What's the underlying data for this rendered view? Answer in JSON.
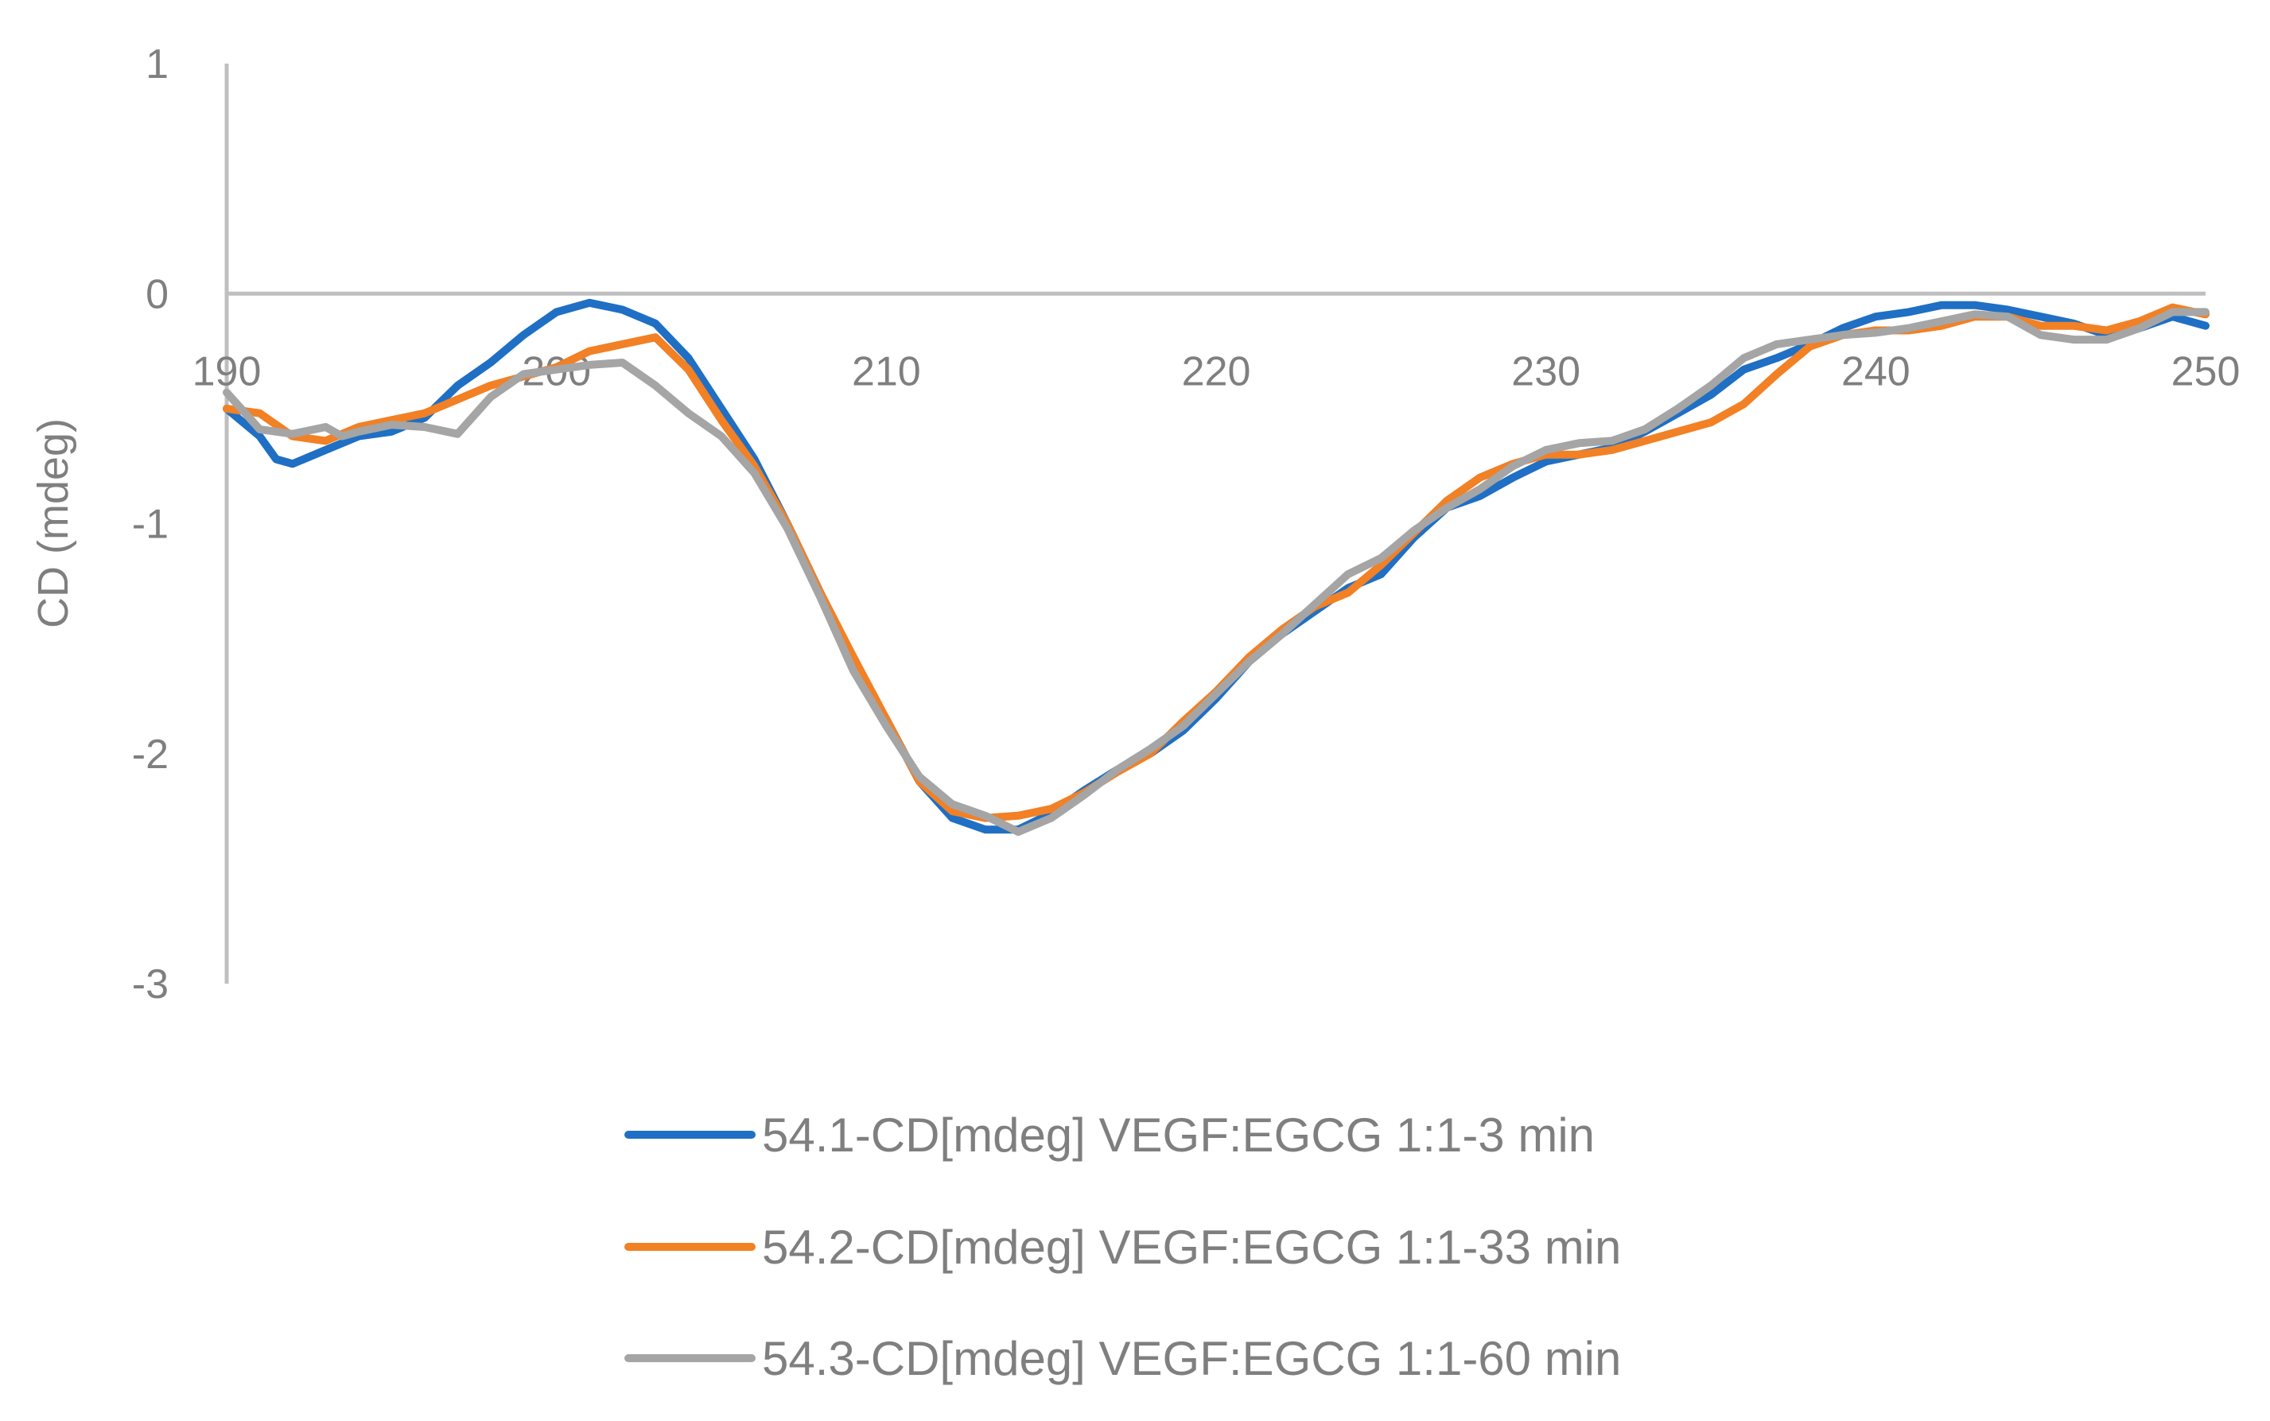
{
  "chart_data": {
    "type": "line",
    "title": "",
    "xlabel": "",
    "ylabel": "CD (mdeg)",
    "xlim": [
      190,
      250
    ],
    "ylim": [
      -3,
      1
    ],
    "x_ticks": [
      "190",
      "200",
      "210",
      "220",
      "230",
      "240",
      "250"
    ],
    "y_ticks": [
      "1",
      "0",
      "-1",
      "-2",
      "-3"
    ],
    "grid": false,
    "legend_position": "bottom",
    "series": [
      {
        "name": "54.1-CD[mdeg] VEGF:EGCG 1:1-3 min",
        "color": "#1f6fc4",
        "points": [
          [
            190,
            -0.5
          ],
          [
            191,
            -0.62
          ],
          [
            191.5,
            -0.72
          ],
          [
            192,
            -0.74
          ],
          [
            193,
            -0.68
          ],
          [
            194,
            -0.62
          ],
          [
            195,
            -0.6
          ],
          [
            196,
            -0.54
          ],
          [
            197,
            -0.4
          ],
          [
            198,
            -0.3
          ],
          [
            199,
            -0.18
          ],
          [
            200,
            -0.08
          ],
          [
            201,
            -0.04
          ],
          [
            202,
            -0.07
          ],
          [
            203,
            -0.13
          ],
          [
            204,
            -0.28
          ],
          [
            205,
            -0.5
          ],
          [
            206,
            -0.72
          ],
          [
            207,
            -1.0
          ],
          [
            208,
            -1.3
          ],
          [
            209,
            -1.62
          ],
          [
            210,
            -1.85
          ],
          [
            211,
            -2.12
          ],
          [
            212,
            -2.28
          ],
          [
            213,
            -2.33
          ],
          [
            214,
            -2.33
          ],
          [
            215,
            -2.26
          ],
          [
            216,
            -2.16
          ],
          [
            217,
            -2.07
          ],
          [
            218,
            -2.0
          ],
          [
            219,
            -1.9
          ],
          [
            220,
            -1.76
          ],
          [
            221,
            -1.6
          ],
          [
            222,
            -1.48
          ],
          [
            223,
            -1.38
          ],
          [
            224,
            -1.28
          ],
          [
            225,
            -1.22
          ],
          [
            226,
            -1.06
          ],
          [
            227,
            -0.93
          ],
          [
            228,
            -0.88
          ],
          [
            229,
            -0.8
          ],
          [
            230,
            -0.73
          ],
          [
            231,
            -0.7
          ],
          [
            232,
            -0.67
          ],
          [
            233,
            -0.6
          ],
          [
            234,
            -0.52
          ],
          [
            235,
            -0.44
          ],
          [
            236,
            -0.33
          ],
          [
            237,
            -0.28
          ],
          [
            238,
            -0.22
          ],
          [
            239,
            -0.15
          ],
          [
            240,
            -0.1
          ],
          [
            241,
            -0.08
          ],
          [
            242,
            -0.05
          ],
          [
            243,
            -0.05
          ],
          [
            244,
            -0.07
          ],
          [
            245,
            -0.1
          ],
          [
            246,
            -0.13
          ],
          [
            247,
            -0.18
          ],
          [
            248,
            -0.15
          ],
          [
            249,
            -0.1
          ],
          [
            250,
            -0.14
          ]
        ]
      },
      {
        "name": "54.2-CD[mdeg] VEGF:EGCG 1:1-33 min",
        "color": "#f28024",
        "points": [
          [
            190,
            -0.5
          ],
          [
            191,
            -0.52
          ],
          [
            192,
            -0.62
          ],
          [
            193,
            -0.64
          ],
          [
            194,
            -0.58
          ],
          [
            195,
            -0.55
          ],
          [
            196,
            -0.52
          ],
          [
            197,
            -0.46
          ],
          [
            198,
            -0.4
          ],
          [
            199,
            -0.36
          ],
          [
            200,
            -0.32
          ],
          [
            201,
            -0.25
          ],
          [
            202,
            -0.22
          ],
          [
            203,
            -0.19
          ],
          [
            204,
            -0.33
          ],
          [
            205,
            -0.55
          ],
          [
            206,
            -0.75
          ],
          [
            207,
            -1.0
          ],
          [
            208,
            -1.3
          ],
          [
            209,
            -1.58
          ],
          [
            210,
            -1.85
          ],
          [
            211,
            -2.12
          ],
          [
            212,
            -2.25
          ],
          [
            213,
            -2.28
          ],
          [
            214,
            -2.27
          ],
          [
            215,
            -2.24
          ],
          [
            216,
            -2.17
          ],
          [
            217,
            -2.08
          ],
          [
            218,
            -2.0
          ],
          [
            219,
            -1.86
          ],
          [
            220,
            -1.73
          ],
          [
            221,
            -1.58
          ],
          [
            222,
            -1.46
          ],
          [
            223,
            -1.36
          ],
          [
            224,
            -1.3
          ],
          [
            225,
            -1.18
          ],
          [
            226,
            -1.04
          ],
          [
            227,
            -0.9
          ],
          [
            228,
            -0.8
          ],
          [
            229,
            -0.74
          ],
          [
            230,
            -0.7
          ],
          [
            231,
            -0.7
          ],
          [
            232,
            -0.68
          ],
          [
            233,
            -0.64
          ],
          [
            234,
            -0.6
          ],
          [
            235,
            -0.56
          ],
          [
            236,
            -0.48
          ],
          [
            237,
            -0.35
          ],
          [
            238,
            -0.23
          ],
          [
            239,
            -0.18
          ],
          [
            240,
            -0.16
          ],
          [
            241,
            -0.16
          ],
          [
            242,
            -0.14
          ],
          [
            243,
            -0.1
          ],
          [
            244,
            -0.1
          ],
          [
            245,
            -0.14
          ],
          [
            246,
            -0.14
          ],
          [
            247,
            -0.16
          ],
          [
            248,
            -0.12
          ],
          [
            249,
            -0.06
          ],
          [
            250,
            -0.09
          ]
        ]
      },
      {
        "name": "54.3-CD[mdeg] VEGF:EGCG 1:1-60 min",
        "color": "#a5a5a5",
        "points": [
          [
            190,
            -0.43
          ],
          [
            191,
            -0.59
          ],
          [
            192,
            -0.61
          ],
          [
            193,
            -0.58
          ],
          [
            193.5,
            -0.62
          ],
          [
            194,
            -0.6
          ],
          [
            195,
            -0.57
          ],
          [
            196,
            -0.58
          ],
          [
            197,
            -0.61
          ],
          [
            198,
            -0.45
          ],
          [
            199,
            -0.35
          ],
          [
            200,
            -0.33
          ],
          [
            201,
            -0.31
          ],
          [
            202,
            -0.3
          ],
          [
            203,
            -0.4
          ],
          [
            204,
            -0.52
          ],
          [
            205,
            -0.62
          ],
          [
            206,
            -0.78
          ],
          [
            207,
            -1.02
          ],
          [
            208,
            -1.32
          ],
          [
            209,
            -1.64
          ],
          [
            210,
            -1.88
          ],
          [
            211,
            -2.1
          ],
          [
            212,
            -2.22
          ],
          [
            213,
            -2.27
          ],
          [
            214,
            -2.34
          ],
          [
            215,
            -2.28
          ],
          [
            216,
            -2.18
          ],
          [
            217,
            -2.07
          ],
          [
            218,
            -1.98
          ],
          [
            219,
            -1.88
          ],
          [
            220,
            -1.74
          ],
          [
            221,
            -1.6
          ],
          [
            222,
            -1.48
          ],
          [
            223,
            -1.35
          ],
          [
            224,
            -1.22
          ],
          [
            225,
            -1.15
          ],
          [
            226,
            -1.03
          ],
          [
            227,
            -0.93
          ],
          [
            228,
            -0.85
          ],
          [
            229,
            -0.75
          ],
          [
            230,
            -0.68
          ],
          [
            231,
            -0.65
          ],
          [
            232,
            -0.64
          ],
          [
            233,
            -0.59
          ],
          [
            234,
            -0.5
          ],
          [
            235,
            -0.4
          ],
          [
            236,
            -0.28
          ],
          [
            237,
            -0.22
          ],
          [
            238,
            -0.2
          ],
          [
            239,
            -0.18
          ],
          [
            240,
            -0.17
          ],
          [
            241,
            -0.15
          ],
          [
            242,
            -0.12
          ],
          [
            243,
            -0.09
          ],
          [
            244,
            -0.1
          ],
          [
            245,
            -0.18
          ],
          [
            246,
            -0.2
          ],
          [
            247,
            -0.2
          ],
          [
            248,
            -0.15
          ],
          [
            249,
            -0.08
          ],
          [
            250,
            -0.08
          ]
        ]
      }
    ]
  }
}
